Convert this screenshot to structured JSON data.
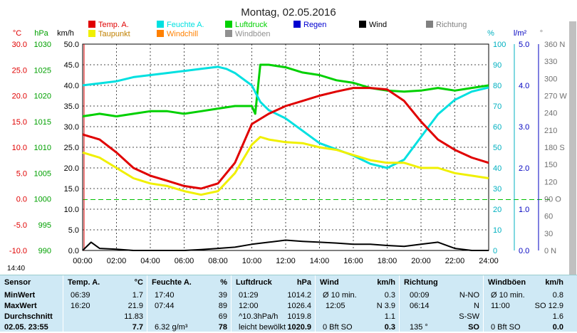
{
  "title": "Montag, 02.05.2016",
  "timestamp": "14:40",
  "legend": [
    {
      "label": "Temp. A.",
      "color": "#e00000"
    },
    {
      "label": "Feuchte A.",
      "color": "#00e0e0"
    },
    {
      "label": "Luftdruck",
      "color": "#00d000"
    },
    {
      "label": "Regen",
      "color": "#0000d0"
    },
    {
      "label": "Wind",
      "color": "#000000"
    },
    {
      "label": "Richtung",
      "color": "#808080"
    },
    {
      "label": "Taupunkt",
      "color": "#f0f000"
    },
    {
      "label": "Windchill",
      "color": "#ff8000"
    },
    {
      "label": "Windböen",
      "color": "#909090"
    }
  ],
  "axis_units": {
    "temp": "°C",
    "pressure": "hPa",
    "wind": "km/h",
    "humidity": "%",
    "rain": "l/m²",
    "direction": "°"
  },
  "chart_data": {
    "type": "line",
    "x_ticks": [
      "00:00",
      "02:00",
      "04:00",
      "06:00",
      "08:00",
      "10:00",
      "12:00",
      "14:00",
      "16:00",
      "18:00",
      "20:00",
      "22:00",
      "24:00"
    ],
    "temp_ticks": [
      "30.0",
      "25.0",
      "20.0",
      "15.0",
      "10.0",
      "5.0",
      "0.0",
      "-5.0",
      "-10.0"
    ],
    "pressure_ticks": [
      "1030",
      "1025",
      "1020",
      "1015",
      "1010",
      "1005",
      "1000",
      "995",
      "990"
    ],
    "wind_ticks": [
      "50.0",
      "45.0",
      "40.0",
      "35.0",
      "30.0",
      "25.0",
      "20.0",
      "15.0",
      "10.0",
      "5.0",
      "0.0"
    ],
    "humidity_ticks": [
      "100",
      "90",
      "80",
      "70",
      "60",
      "50",
      "40",
      "30",
      "20",
      "10",
      "0"
    ],
    "rain_ticks": [
      "5.0",
      "4.0",
      "3.0",
      "2.0",
      "1.0",
      "0.0"
    ],
    "dir_ticks": [
      "360 N",
      "330",
      "300",
      "270 W",
      "240",
      "210",
      "180 S",
      "150",
      "120",
      "90 O",
      "60",
      "30",
      "0 N"
    ],
    "temp_range": [
      -10,
      30
    ],
    "pressure_range": [
      990,
      1030
    ],
    "wind_range": [
      0,
      50
    ],
    "humidity_range": [
      0,
      100
    ],
    "dir_range": [
      0,
      360
    ],
    "series": [
      {
        "name": "Temp. A.",
        "color": "#e00000",
        "axis": "temp",
        "x": [
          0,
          1,
          2,
          3,
          4,
          5,
          6,
          7,
          8,
          9,
          10,
          10.5,
          11,
          12,
          13,
          14,
          15,
          16,
          17,
          18,
          19,
          20,
          21,
          22,
          23,
          24
        ],
        "values": [
          12.5,
          11.5,
          9,
          6,
          4.5,
          3.5,
          2.5,
          2,
          3,
          7,
          14.5,
          15.5,
          16.5,
          18,
          19,
          20,
          20.8,
          21.5,
          21.5,
          21.2,
          19,
          15,
          11.5,
          9.5,
          8,
          7
        ]
      },
      {
        "name": "Taupunkt",
        "color": "#f0f000",
        "axis": "temp",
        "x": [
          0,
          1,
          2,
          3,
          4,
          5,
          6,
          7,
          8,
          9,
          10,
          10.5,
          11,
          12,
          13,
          14,
          15,
          16,
          17,
          18,
          19,
          20,
          21,
          22,
          23,
          24
        ],
        "values": [
          9,
          8,
          6,
          4,
          3,
          2.5,
          1.5,
          0.8,
          1.5,
          5,
          10.5,
          12,
          11.5,
          11,
          10.8,
          10,
          9.5,
          8.5,
          7.5,
          7,
          7,
          6,
          6,
          5,
          4.5,
          4
        ]
      },
      {
        "name": "Feuchte A.",
        "color": "#00e0e0",
        "axis": "humidity",
        "x": [
          0,
          1,
          2,
          3,
          4,
          5,
          6,
          7,
          8,
          8.5,
          9,
          10,
          10.5,
          11,
          12,
          13,
          14,
          15,
          16,
          17,
          18,
          19,
          20,
          21,
          22,
          23,
          24
        ],
        "values": [
          80,
          81,
          82,
          84,
          85,
          86,
          87,
          88,
          89,
          88,
          86,
          80,
          72,
          68,
          64,
          58,
          52,
          49,
          46,
          42,
          40,
          44,
          55,
          66,
          73,
          77,
          79
        ]
      },
      {
        "name": "Luftdruck",
        "color": "#00d000",
        "axis": "pressure",
        "x": [
          0,
          1,
          2,
          3,
          4,
          5,
          6,
          7,
          8,
          9,
          10,
          10.2,
          10.5,
          11,
          12,
          13,
          14,
          15,
          16,
          17,
          18,
          19,
          20,
          21,
          22,
          23,
          24
        ],
        "values": [
          1016,
          1016.5,
          1016,
          1016.5,
          1017,
          1017,
          1016.5,
          1017,
          1017.5,
          1018,
          1018,
          1016.5,
          1026,
          1026,
          1025.5,
          1024.5,
          1024,
          1023,
          1022.5,
          1021.5,
          1021,
          1020.8,
          1021,
          1021.5,
          1021,
          1021.5,
          1022
        ]
      },
      {
        "name": "Wind",
        "color": "#000000",
        "axis": "wind",
        "x": [
          0,
          0.5,
          1,
          2,
          3,
          4,
          5,
          6,
          7,
          8,
          9,
          10,
          11,
          12,
          13,
          14,
          15,
          16,
          17,
          18,
          19,
          20,
          21,
          22,
          23,
          24
        ],
        "values": [
          0,
          2,
          0.5,
          0.3,
          0,
          0,
          0,
          0,
          0.2,
          0.5,
          0.8,
          1.5,
          2,
          2.5,
          2.2,
          2,
          1.8,
          1.5,
          1.5,
          1.2,
          1,
          1.5,
          2,
          0.5,
          0,
          0
        ]
      }
    ]
  },
  "stats": {
    "sensor": {
      "header": "Sensor",
      "min": "MinWert",
      "max": "MaxWert",
      "avg": "Durchschnitt",
      "cur": "02.05. 23:55"
    },
    "temp": {
      "header": "Temp. A.",
      "unit": "°C",
      "min_time": "06:39",
      "min_val": "1.7",
      "max_time": "16:20",
      "max_val": "21.9",
      "avg": "11.83",
      "cur": "7.7"
    },
    "hum": {
      "header": "Feuchte A.",
      "unit": "%",
      "min_time": "17:40",
      "min_val": "39",
      "max_time": "07:44",
      "max_val": "89",
      "avg": "69",
      "cur_extra": "6.32 g/m³",
      "cur": "78"
    },
    "press": {
      "header": "Luftdruck",
      "unit": "hPa",
      "min_time": "01:29",
      "min_val": "1014.2",
      "max_time": "12:00",
      "max_val": "1026.4",
      "avg_extra": "^10.3hPa/h",
      "avg": "1019.8",
      "cur_extra": "leicht bewölkt",
      "cur": "1020.9"
    },
    "wind": {
      "header": "Wind",
      "unit": "km/h",
      "min_time": "Ø 10 min.",
      "min_val": "0.3",
      "max_time": "12:05",
      "max_val": "N 3.9",
      "avg": "1.1",
      "cur_extra": "0 Bft SO",
      "cur": "0.3"
    },
    "dir": {
      "header": "Richtung",
      "min_time": "00:09",
      "min_val": "N-NO",
      "max_time": "06:14",
      "max_val": "N",
      "avg": "S-SW",
      "cur_extra": "135 °",
      "cur": "SO"
    },
    "gust": {
      "header": "Windböen",
      "unit": "km/h",
      "min_time": "Ø 10 min.",
      "min_val": "0.8",
      "max_time": "11:00",
      "max_val": "SO 12.9",
      "avg": "1.6",
      "cur_extra": "0 Bft SO",
      "cur": "0.0"
    }
  }
}
